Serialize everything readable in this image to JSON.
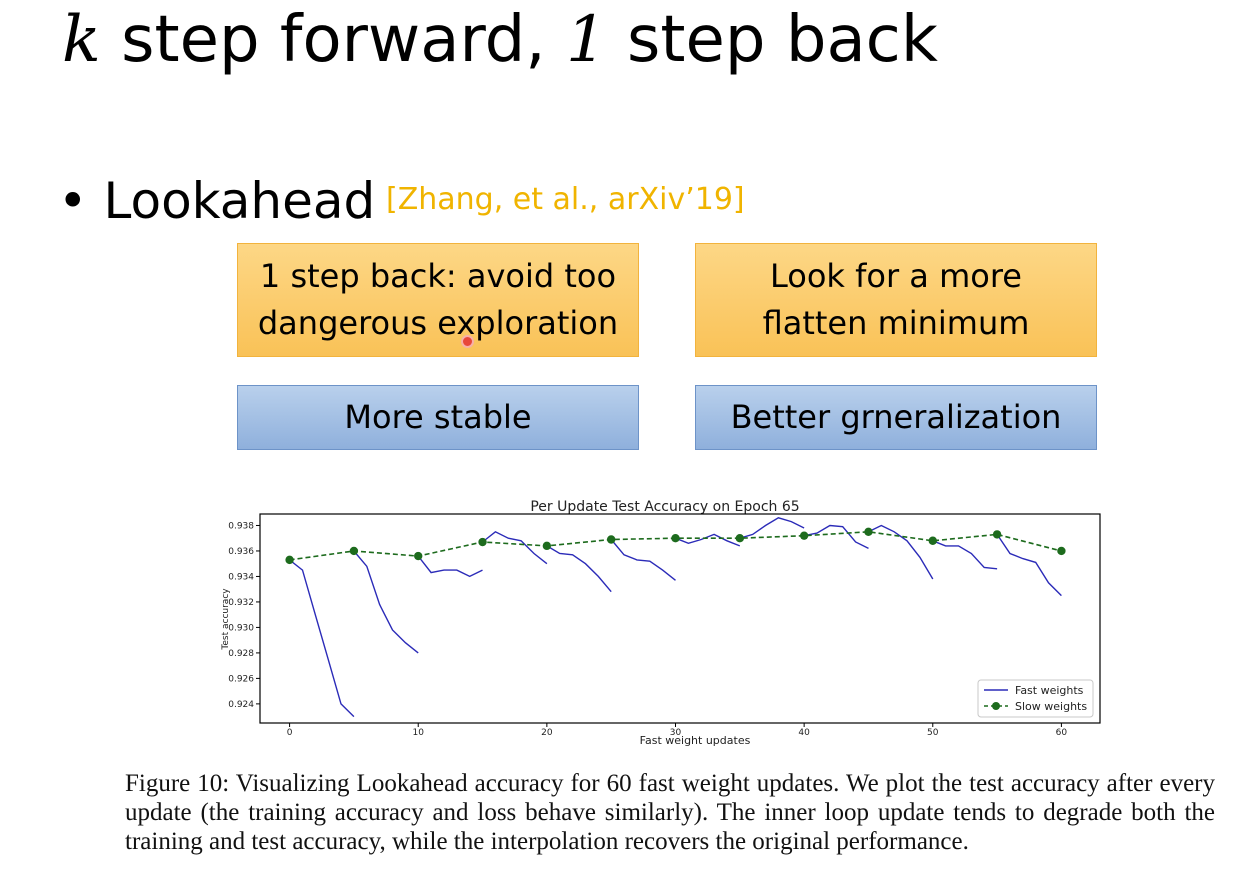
{
  "slide": {
    "title_k": "k",
    "title_mid": " step forward, ",
    "title_one": "1",
    "title_end": " step back",
    "bullet_dot": "•",
    "bullet_text": "Lookahead",
    "citation": "[Zhang, et al., arXiv’19]",
    "citation_color": "#f0b400",
    "boxes": {
      "orange_left_line1": "1 step back: avoid too",
      "orange_left_line2": "dangerous exploration",
      "orange_right_line1": "Look for a more",
      "orange_right_line2": "flatten minimum",
      "blue_left": "More stable",
      "blue_right": "Better grneralization"
    },
    "caption": "Figure 10: Visualizing Lookahead accuracy for 60 fast weight updates. We plot the test accuracy after every update (the training accuracy and loss behave similarly). The inner loop update tends to degrade both the training and test accuracy, while the interpolation recovers the original performance."
  },
  "chart_data": {
    "type": "line",
    "title": "Per Update Test Accuracy on Epoch 65",
    "xlabel": "Fast weight updates",
    "ylabel": "Test accuracy",
    "xlim": [
      -2.3,
      63
    ],
    "ylim": [
      0.9225,
      0.9389
    ],
    "xticks": [
      0,
      10,
      20,
      30,
      40,
      50,
      60
    ],
    "yticks": [
      0.924,
      0.926,
      0.928,
      0.93,
      0.932,
      0.934,
      0.936,
      0.938
    ],
    "legend_position": "lower right",
    "grid": false,
    "series": [
      {
        "name": "Fast weights",
        "color": "#2b2bb8",
        "style": "solid",
        "segments": [
          {
            "x": [
              0,
              1,
              2,
              3,
              4,
              5
            ],
            "y": [
              0.9353,
              0.9345,
              0.931,
              0.9275,
              0.924,
              0.923
            ]
          },
          {
            "x": [
              5,
              6,
              7,
              8,
              9,
              10
            ],
            "y": [
              0.936,
              0.9348,
              0.9318,
              0.9298,
              0.9288,
              0.928
            ]
          },
          {
            "x": [
              10,
              11,
              12,
              13,
              14,
              15
            ],
            "y": [
              0.9356,
              0.9343,
              0.9345,
              0.9345,
              0.934,
              0.9345
            ]
          },
          {
            "x": [
              15,
              16,
              17,
              18,
              19,
              20
            ],
            "y": [
              0.9367,
              0.9375,
              0.937,
              0.9368,
              0.9358,
              0.935
            ]
          },
          {
            "x": [
              20,
              21,
              22,
              23,
              24,
              25
            ],
            "y": [
              0.9364,
              0.9358,
              0.9357,
              0.935,
              0.934,
              0.9328
            ]
          },
          {
            "x": [
              25,
              26,
              27,
              28,
              29,
              30
            ],
            "y": [
              0.9369,
              0.9357,
              0.9353,
              0.9352,
              0.9345,
              0.9337
            ]
          },
          {
            "x": [
              30,
              31,
              32,
              33,
              34,
              35
            ],
            "y": [
              0.937,
              0.9366,
              0.9369,
              0.9373,
              0.9368,
              0.9364
            ]
          },
          {
            "x": [
              35,
              36,
              37,
              38,
              39,
              40
            ],
            "y": [
              0.937,
              0.9373,
              0.938,
              0.9386,
              0.9383,
              0.9378
            ]
          },
          {
            "x": [
              40,
              41,
              42,
              43,
              44,
              45
            ],
            "y": [
              0.9372,
              0.9374,
              0.938,
              0.9379,
              0.9367,
              0.9362
            ]
          },
          {
            "x": [
              45,
              46,
              47,
              48,
              49,
              50
            ],
            "y": [
              0.9375,
              0.938,
              0.9375,
              0.9368,
              0.9355,
              0.9338
            ]
          },
          {
            "x": [
              50,
              51,
              52,
              53,
              54,
              55
            ],
            "y": [
              0.9368,
              0.9364,
              0.9364,
              0.9358,
              0.9347,
              0.9346
            ]
          },
          {
            "x": [
              55,
              56,
              57,
              58,
              59,
              60
            ],
            "y": [
              0.9373,
              0.9358,
              0.9354,
              0.9351,
              0.9335,
              0.9325
            ]
          }
        ]
      },
      {
        "name": "Slow weights",
        "color": "#1d6b1d",
        "style": "dashed",
        "marker": "circle",
        "x": [
          0,
          5,
          10,
          15,
          20,
          25,
          30,
          35,
          40,
          45,
          50,
          55,
          60
        ],
        "y": [
          0.9353,
          0.936,
          0.9356,
          0.9367,
          0.9364,
          0.9369,
          0.937,
          0.937,
          0.9372,
          0.9375,
          0.9368,
          0.9373,
          0.936
        ]
      }
    ]
  }
}
